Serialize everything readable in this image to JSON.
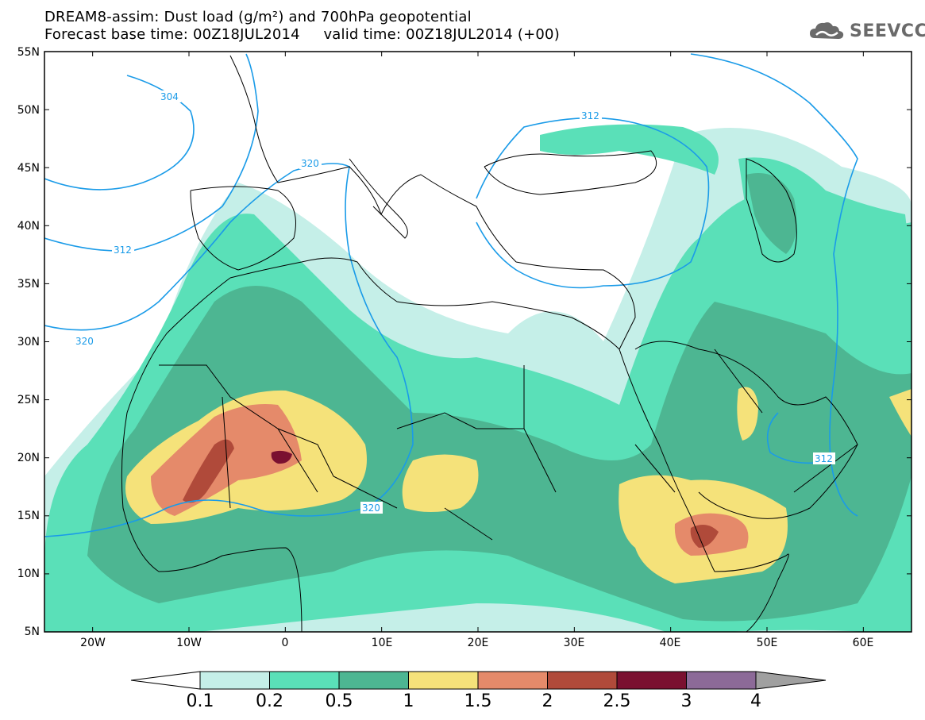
{
  "header": {
    "title_line1": "DREAM8-assim: Dust load (g/m²) and 700hPa geopotential",
    "title_line2": "Forecast base time: 00Z18JUL2014     valid time: 00Z18JUL2014 (+00)",
    "logo_text": "SEEVCCC"
  },
  "map": {
    "lon_range": [
      -25,
      65
    ],
    "lat_range": [
      5,
      55
    ],
    "lat_ticks": [
      "55N",
      "50N",
      "45N",
      "40N",
      "35N",
      "30N",
      "25N",
      "20N",
      "15N",
      "10N",
      "5N"
    ],
    "lon_ticks": [
      "20W",
      "10W",
      "0",
      "10E",
      "20E",
      "30E",
      "40E",
      "50E",
      "60E"
    ],
    "contour_color": "#1a9be8",
    "contour_labels": [
      "304",
      "320",
      "312",
      "320",
      "312",
      "320",
      "312"
    ]
  },
  "colorbar": {
    "levels": [
      "0.1",
      "0.2",
      "0.5",
      "1",
      "1.5",
      "2",
      "2.5",
      "3",
      "4"
    ],
    "colors": [
      "#c5efe8",
      "#5ae0b8",
      "#4db692",
      "#f5e27a",
      "#e58a6a",
      "#b04a3a",
      "#7a1030",
      "#8c6a98"
    ],
    "over_color": "#a0a0a0",
    "under_color": "#ffffff"
  }
}
